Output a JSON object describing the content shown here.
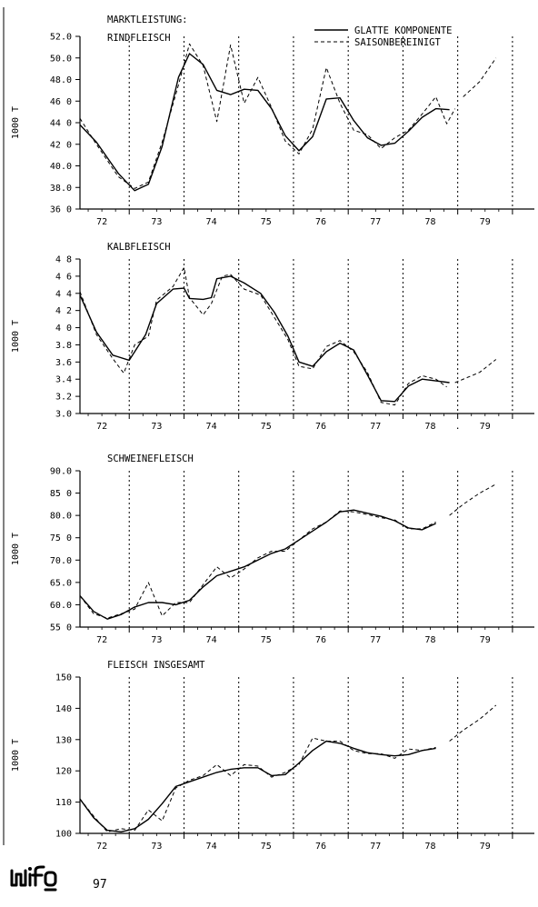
{
  "legend": {
    "smooth": "GLATTE KOMPONENTE",
    "adjusted": "SAISONBEREINIGT"
  },
  "footer": {
    "logo_text": "wifo",
    "page_number": "97"
  },
  "chart_data": [
    {
      "type": "line",
      "title": "MARKTLEISTUNG:",
      "subtitle": "RINDFLEISCH",
      "ylabel": "1000 T",
      "xlim": [
        71.6,
        79.9
      ],
      "ylim": [
        36,
        52
      ],
      "yticks": [
        36,
        38,
        40,
        42,
        44,
        46,
        48,
        50,
        52
      ],
      "ytick_labels": [
        "36 0",
        "38.0",
        "40.0",
        "42 0",
        "44 0",
        "46 0",
        "48.0",
        "50.0",
        "52.0"
      ],
      "xticks": [
        72,
        73,
        74,
        75,
        76,
        77,
        78,
        79
      ],
      "xtick_labels": [
        "72",
        "73",
        "74",
        "75",
        "76",
        "77",
        "78",
        "79"
      ],
      "series": [
        {
          "name": "GLATTE KOMPONENTE",
          "style": "solid",
          "x": [
            71.6,
            71.9,
            72.3,
            72.6,
            72.85,
            73.1,
            73.4,
            73.6,
            73.85,
            74.1,
            74.35,
            74.6,
            74.85,
            75.1,
            75.35,
            75.6,
            75.85,
            76.1,
            76.35,
            76.6,
            76.85,
            77.1,
            77.35,
            77.6,
            77.85,
            78.1,
            78.35
          ],
          "y": [
            43.8,
            42.2,
            39.3,
            37.7,
            38.3,
            41.8,
            48.2,
            50.4,
            49.4,
            47.0,
            46.6,
            47.1,
            47.0,
            45.3,
            42.8,
            41.4,
            42.7,
            46.2,
            46.3,
            44.2,
            42.6,
            41.9,
            42.1,
            43.2,
            44.5,
            45.3,
            45.2
          ]
        },
        {
          "name": "SAISONBEREINIGT",
          "style": "dashed",
          "x": [
            71.6,
            71.9,
            72.3,
            72.6,
            72.85,
            73.1,
            73.4,
            73.6,
            73.85,
            74.1,
            74.35,
            74.6,
            74.85,
            75.1,
            75.35,
            75.6,
            75.85,
            76.1,
            76.35,
            76.6,
            76.85,
            77.1,
            77.35,
            77.6,
            77.85,
            78.1,
            78.3,
            78.45
          ],
          "y": [
            44.4,
            42.0,
            39.0,
            37.9,
            38.5,
            42.2,
            47.5,
            51.3,
            49.3,
            44.1,
            51.2,
            45.8,
            48.2,
            45.4,
            42.3,
            41.1,
            43.4,
            49.1,
            45.8,
            43.3,
            42.9,
            41.6,
            42.6,
            43.3,
            44.8,
            46.4,
            43.9,
            45.3
          ]
        },
        {
          "name": "",
          "style": "dashed",
          "x": [
            78.6,
            78.9,
            79.2
          ],
          "y": [
            46.4,
            47.8,
            50.0
          ]
        }
      ]
    },
    {
      "type": "line",
      "title": "KALBFLEISCH",
      "ylabel": "1000 T",
      "xlim": [
        71.6,
        79.9
      ],
      "ylim": [
        3.0,
        4.8
      ],
      "yticks": [
        3.0,
        3.2,
        3.4,
        3.6,
        3.8,
        4.0,
        4.2,
        4.4,
        4.6,
        4.8
      ],
      "ytick_labels": [
        "3.0",
        "3.2",
        "3.4",
        "3.6",
        "3.8",
        "4 0",
        "4 2",
        "4 4",
        "4 6",
        "4 8"
      ],
      "xticks": [
        72,
        73,
        74,
        75,
        76,
        77,
        78,
        79
      ],
      "xtick_labels": [
        "72",
        "73",
        "74",
        "75",
        "76",
        "77",
        "78",
        "79"
      ],
      "extra_x_label": {
        "x": 78.5,
        "text": "."
      },
      "series": [
        {
          "name": "GLATTE KOMPONENTE",
          "style": "solid",
          "x": [
            71.6,
            71.9,
            72.2,
            72.5,
            72.8,
            73.0,
            73.3,
            73.5,
            73.6,
            73.85,
            74.0,
            74.1,
            74.35,
            74.6,
            74.9,
            75.15,
            75.4,
            75.6,
            75.85,
            76.1,
            76.35,
            76.6,
            76.85,
            77.1,
            77.35,
            77.6,
            77.85,
            78.1,
            78.35
          ],
          "y": [
            4.38,
            3.95,
            3.68,
            3.62,
            3.92,
            4.28,
            4.45,
            4.46,
            4.34,
            4.33,
            4.35,
            4.57,
            4.6,
            4.52,
            4.4,
            4.18,
            3.9,
            3.6,
            3.55,
            3.72,
            3.82,
            3.74,
            3.45,
            3.15,
            3.14,
            3.32,
            3.4,
            3.38,
            3.36
          ]
        },
        {
          "name": "SAISONBEREINIGT",
          "style": "dashed",
          "x": [
            71.6,
            71.9,
            72.2,
            72.4,
            72.6,
            72.85,
            73.0,
            73.3,
            73.5,
            73.6,
            73.85,
            74.0,
            74.2,
            74.35,
            74.6,
            74.9,
            75.15,
            75.4,
            75.6,
            75.85,
            76.1,
            76.35,
            76.6,
            76.85,
            77.1,
            77.35,
            77.6,
            77.85,
            78.1,
            78.3
          ],
          "y": [
            4.42,
            3.92,
            3.64,
            3.47,
            3.8,
            3.9,
            4.32,
            4.48,
            4.7,
            4.35,
            4.15,
            4.28,
            4.6,
            4.62,
            4.45,
            4.38,
            4.12,
            3.86,
            3.55,
            3.52,
            3.78,
            3.85,
            3.72,
            3.48,
            3.13,
            3.1,
            3.35,
            3.44,
            3.4,
            3.31
          ]
        },
        {
          "name": "",
          "style": "dashed",
          "x": [
            78.45,
            78.9,
            79.2
          ],
          "y": [
            3.36,
            3.48,
            3.63
          ]
        }
      ]
    },
    {
      "type": "line",
      "title": "SCHWEINEFLEISCH",
      "ylabel": "1000 T",
      "xlim": [
        71.6,
        79.9
      ],
      "ylim": [
        55,
        90
      ],
      "yticks": [
        55,
        60,
        65,
        70,
        75,
        80,
        85,
        90
      ],
      "ytick_labels": [
        "55 0",
        "60.0",
        "65.0",
        "70.0",
        "75 0",
        "80.0",
        "85 0",
        "90.0"
      ],
      "xticks": [
        72,
        73,
        74,
        75,
        76,
        77,
        78,
        79
      ],
      "xtick_labels": [
        "72",
        "73",
        "74",
        "75",
        "76",
        "77",
        "78",
        "79"
      ],
      "series": [
        {
          "name": "GLATTE KOMPONENTE",
          "style": "solid",
          "x": [
            71.6,
            71.85,
            72.1,
            72.35,
            72.6,
            72.85,
            73.1,
            73.35,
            73.6,
            73.85,
            74.1,
            74.35,
            74.6,
            74.85,
            75.1,
            75.35,
            75.6,
            75.85,
            76.1,
            76.35,
            76.6,
            76.85,
            77.1,
            77.35,
            77.6,
            77.85,
            78.1
          ],
          "y": [
            62.0,
            58.5,
            56.8,
            57.8,
            59.5,
            60.5,
            60.5,
            60.0,
            61.0,
            64.0,
            66.5,
            67.5,
            68.5,
            70.0,
            71.5,
            72.5,
            74.5,
            76.5,
            78.5,
            80.8,
            81.2,
            80.5,
            79.8,
            78.8,
            77.2,
            76.8,
            78.2
          ]
        },
        {
          "name": "SAISONBEREINIGT",
          "style": "dashed",
          "x": [
            71.6,
            71.85,
            72.1,
            72.35,
            72.6,
            72.85,
            73.1,
            73.35,
            73.6,
            73.85,
            74.1,
            74.35,
            74.6,
            74.85,
            75.1,
            75.35,
            75.6,
            75.85,
            76.1,
            76.35,
            76.6,
            76.85,
            77.1,
            77.35,
            77.6,
            77.85,
            78.1
          ],
          "y": [
            62.0,
            58.0,
            57.0,
            58.0,
            59.0,
            65.0,
            57.5,
            60.5,
            60.5,
            64.5,
            68.5,
            66.0,
            68.0,
            70.5,
            72.0,
            72.0,
            74.5,
            77.0,
            78.5,
            81.0,
            80.8,
            80.2,
            79.5,
            79.0,
            77.0,
            77.0,
            78.5
          ]
        },
        {
          "name": "",
          "style": "dashed",
          "x": [
            78.35,
            78.6,
            78.9,
            79.2
          ],
          "y": [
            80.0,
            82.5,
            85.0,
            87.0
          ]
        }
      ]
    },
    {
      "type": "line",
      "title": "FLEISCH INSGESAMT",
      "ylabel": "1000 T",
      "xlim": [
        71.6,
        79.9
      ],
      "ylim": [
        100,
        150
      ],
      "yticks": [
        100,
        110,
        120,
        130,
        140,
        150
      ],
      "ytick_labels": [
        "100",
        "110",
        "120",
        "130",
        "140",
        "150"
      ],
      "xticks": [
        72,
        73,
        74,
        75,
        76,
        77,
        78,
        79
      ],
      "xtick_labels": [
        "72",
        "73",
        "74",
        "75",
        "76",
        "77",
        "78",
        "79"
      ],
      "series": [
        {
          "name": "GLATTE KOMPONENTE",
          "style": "solid",
          "x": [
            71.6,
            71.85,
            72.1,
            72.35,
            72.6,
            72.85,
            73.1,
            73.35,
            73.6,
            73.85,
            74.1,
            74.35,
            74.6,
            74.85,
            75.1,
            75.35,
            75.6,
            75.85,
            76.1,
            76.35,
            76.6,
            76.85,
            77.1,
            77.35,
            77.6,
            77.85,
            78.1
          ],
          "y": [
            111.0,
            105.0,
            101.0,
            100.5,
            101.5,
            104.5,
            109.5,
            115.0,
            116.5,
            118.0,
            119.5,
            120.5,
            121.0,
            121.0,
            118.5,
            118.8,
            122.5,
            126.5,
            129.5,
            128.8,
            127.2,
            125.8,
            125.2,
            124.8,
            125.2,
            126.5,
            127.2
          ]
        },
        {
          "name": "SAISONBEREINIGT",
          "style": "dashed",
          "x": [
            71.6,
            71.85,
            72.1,
            72.35,
            72.6,
            72.85,
            73.1,
            73.35,
            73.6,
            73.85,
            74.1,
            74.35,
            74.6,
            74.85,
            75.1,
            75.35,
            75.6,
            75.85,
            76.1,
            76.35,
            76.6,
            76.85,
            77.1,
            77.35,
            77.6,
            77.85,
            78.1
          ],
          "y": [
            111.0,
            105.5,
            100.5,
            101.5,
            101.0,
            107.5,
            104.0,
            114.5,
            117.0,
            118.5,
            122.0,
            118.5,
            122.0,
            121.5,
            118.0,
            119.5,
            122.0,
            130.5,
            129.5,
            129.5,
            126.5,
            125.5,
            125.5,
            124.0,
            127.0,
            126.5,
            127.5
          ]
        },
        {
          "name": "",
          "style": "dashed",
          "x": [
            78.35,
            78.6,
            78.9,
            79.2
          ],
          "y": [
            129.5,
            133.0,
            136.5,
            141.0
          ]
        }
      ]
    }
  ]
}
